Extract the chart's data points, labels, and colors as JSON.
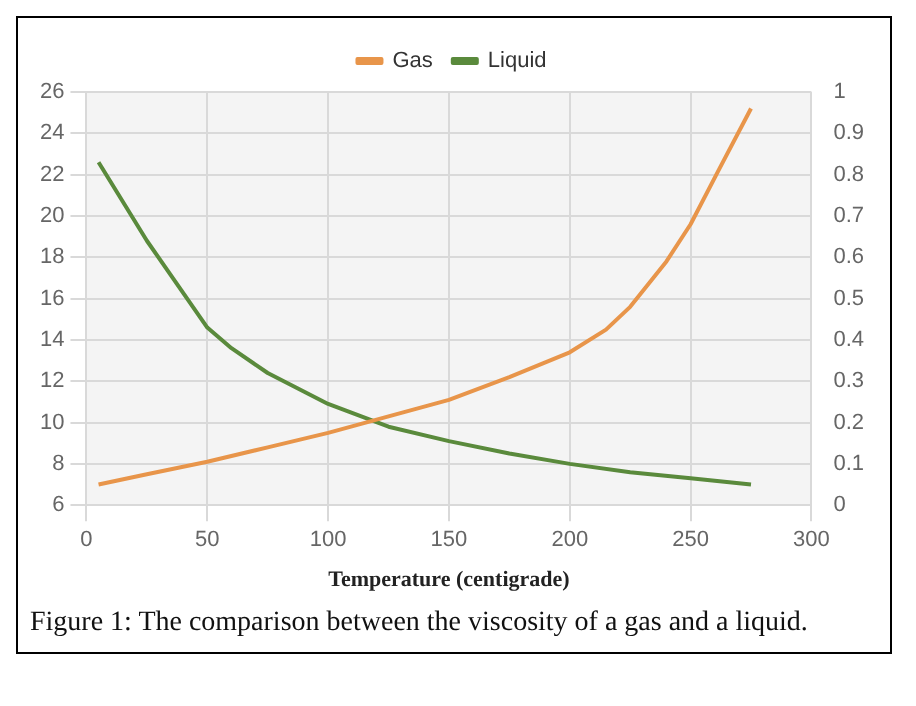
{
  "chart_data": {
    "type": "line",
    "xlabel": "Temperature (centigrade)",
    "annotations": [
      "Figure 1: The comparison between the viscosity of a gas and a liquid."
    ],
    "xlim": [
      0,
      300
    ],
    "xticks": [
      0,
      50,
      100,
      150,
      200,
      250,
      300
    ],
    "ylim": [
      6,
      26
    ],
    "yticks": [
      6,
      8,
      10,
      12,
      14,
      16,
      18,
      20,
      22,
      24,
      26
    ],
    "y2lim": [
      0,
      1
    ],
    "y2ticks": [
      0,
      0.1,
      0.2,
      0.3,
      0.4,
      0.5,
      0.6,
      0.7,
      0.8,
      0.9,
      1
    ],
    "grid": true,
    "legend": "top",
    "marker": "none",
    "line_style": "solid",
    "series": [
      {
        "name": "Gas",
        "color": "#e8954a",
        "x": [
          5,
          25,
          50,
          75,
          100,
          125,
          150,
          175,
          200,
          215,
          225,
          240,
          250,
          262,
          275
        ],
        "values": [
          7.0,
          7.5,
          8.1,
          8.8,
          9.5,
          10.3,
          11.1,
          12.2,
          13.4,
          14.5,
          15.6,
          17.8,
          19.6,
          22.3,
          25.2
        ]
      },
      {
        "name": "Liquid",
        "color": "#5a8a3c",
        "axis": "y2",
        "x": [
          5,
          25,
          50,
          60,
          75,
          100,
          125,
          150,
          175,
          200,
          225,
          250,
          275
        ],
        "values": [
          0.83,
          0.64,
          0.43,
          0.38,
          0.32,
          0.245,
          0.19,
          0.155,
          0.125,
          0.1,
          0.08,
          0.065,
          0.05
        ]
      }
    ]
  }
}
